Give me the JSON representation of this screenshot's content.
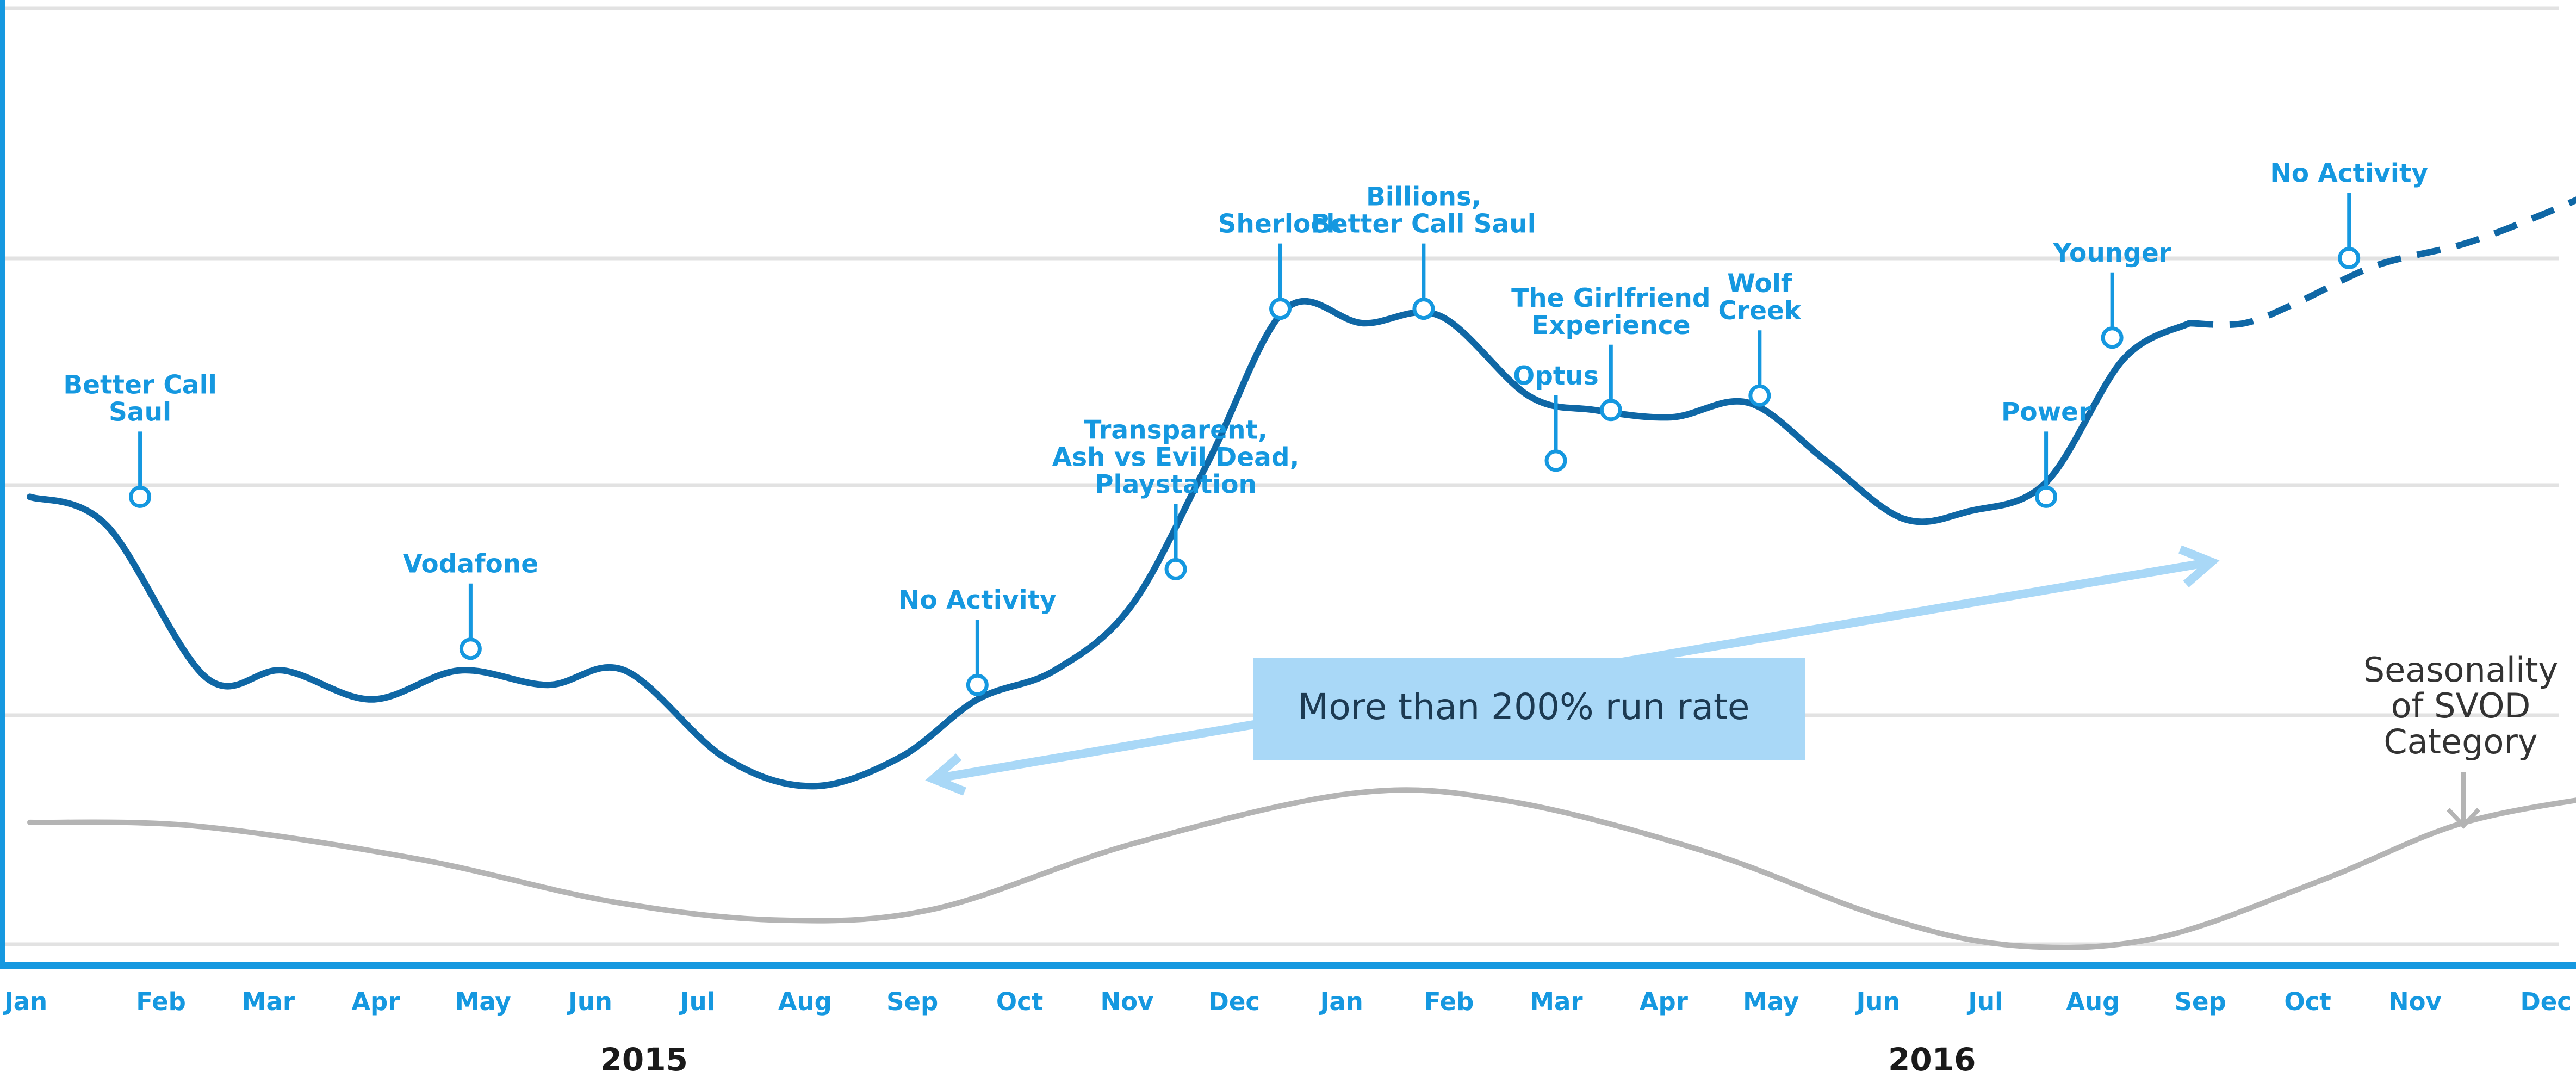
{
  "chart_data": {
    "type": "line",
    "title": "",
    "xlabel": "",
    "ylabel": "",
    "x": [
      "Jan",
      "Feb",
      "Mar",
      "Apr",
      "May",
      "Jun",
      "Jul",
      "Aug",
      "Sep",
      "Oct",
      "Nov",
      "Dec",
      "Jan",
      "Feb",
      "Mar",
      "Apr",
      "May",
      "Jun",
      "Jul",
      "Aug",
      "Sep",
      "Oct",
      "Nov",
      "Dec"
    ],
    "years": [
      {
        "label": "2015",
        "month_start": 0,
        "month_end": 11
      },
      {
        "label": "2016",
        "month_start": 12,
        "month_end": 23
      }
    ],
    "grid": true,
    "ylim": [
      0,
      100
    ],
    "series": [
      {
        "key": "activity",
        "style": "solid",
        "color": "#0f67a5",
        "points": [
          [
            0.0,
            62
          ],
          [
            0.7,
            58
          ],
          [
            1.6,
            37
          ],
          [
            2.3,
            38
          ],
          [
            3.1,
            34
          ],
          [
            3.9,
            38
          ],
          [
            4.7,
            36
          ],
          [
            5.4,
            38
          ],
          [
            6.3,
            26
          ],
          [
            7.1,
            22
          ],
          [
            7.9,
            26
          ],
          [
            8.6,
            34
          ],
          [
            9.3,
            38
          ],
          [
            10.0,
            47
          ],
          [
            10.7,
            67
          ],
          [
            11.4,
            88
          ],
          [
            12.1,
            86
          ],
          [
            12.8,
            87
          ],
          [
            13.6,
            76
          ],
          [
            14.2,
            74
          ],
          [
            14.9,
            73
          ],
          [
            15.6,
            75
          ],
          [
            16.3,
            67
          ],
          [
            17.0,
            59
          ],
          [
            17.6,
            60
          ],
          [
            18.3,
            64
          ],
          [
            19.0,
            81
          ],
          [
            19.6,
            86
          ]
        ]
      },
      {
        "key": "projection",
        "style": "dashed",
        "color": "#0f67a5",
        "points": [
          [
            19.6,
            86
          ],
          [
            20.1,
            86
          ],
          [
            20.6,
            89
          ],
          [
            21.3,
            94
          ],
          [
            22.1,
            97
          ],
          [
            22.8,
            101
          ],
          [
            23.4,
            105
          ]
        ]
      },
      {
        "key": "seasonality",
        "name": "Seasonality of SVOD Category",
        "style": "solid",
        "color": "#b4b4b4",
        "points": [
          [
            0.0,
            17
          ],
          [
            1.5,
            16.5
          ],
          [
            3.5,
            12
          ],
          [
            5.3,
            6
          ],
          [
            6.8,
            3.5
          ],
          [
            8.2,
            5
          ],
          [
            10.0,
            14
          ],
          [
            12.0,
            21
          ],
          [
            13.4,
            20
          ],
          [
            15.2,
            13
          ],
          [
            16.8,
            4
          ],
          [
            18.0,
            0
          ],
          [
            19.3,
            1
          ],
          [
            20.8,
            9
          ],
          [
            22.1,
            17
          ],
          [
            23.5,
            21
          ]
        ]
      }
    ],
    "annotations": [
      {
        "label": "Better Call Saul",
        "lines": [
          "Better Call",
          "Saul"
        ],
        "x": 1.0,
        "y": 62
      },
      {
        "label": "Vodafone",
        "lines": [
          "Vodafone"
        ],
        "x": 4.0,
        "y": 41
      },
      {
        "label": "No Activity",
        "lines": [
          "No Activity"
        ],
        "x": 8.6,
        "y": 36
      },
      {
        "label": "Transparent, Ash vs Evil Dead, Playstation",
        "lines": [
          "Transparent,",
          "Ash vs Evil Dead,",
          "Playstation"
        ],
        "x": 10.4,
        "y": 52
      },
      {
        "label": "Sherlock",
        "lines": [
          "Sherlock"
        ],
        "x": 11.35,
        "y": 88
      },
      {
        "label": "Billions, Better Call Saul",
        "lines": [
          "Billions,",
          "Better Call Saul"
        ],
        "x": 12.65,
        "y": 88
      },
      {
        "label": "Optus",
        "lines": [
          "Optus"
        ],
        "x": 13.85,
        "y": 67
      },
      {
        "label": "The Girlfriend Experience",
        "lines": [
          "The Girlfriend",
          "Experience"
        ],
        "x": 14.35,
        "y": 74
      },
      {
        "label": "Wolf Creek",
        "lines": [
          "Wolf",
          "Creek"
        ],
        "x": 15.7,
        "y": 76
      },
      {
        "label": "Power",
        "lines": [
          "Power"
        ],
        "x": 18.3,
        "y": 62
      },
      {
        "label": "Younger",
        "lines": [
          "Younger"
        ],
        "x": 18.9,
        "y": 84
      },
      {
        "label": "No Activity",
        "lines": [
          "No Activity"
        ],
        "x": 21.05,
        "y": 95
      }
    ],
    "run_rate": {
      "label": "More than 200% run rate",
      "from_x": 8.2,
      "from_y": 23,
      "to_x": 19.8,
      "to_y": 53
    },
    "seasonality_label": [
      "Seasonality",
      "of SVOD",
      "Category"
    ],
    "colors": {
      "activity": "#0f67a5",
      "annotation": "#1598e0",
      "seasonality": "#b4b4b4",
      "run_rate_arrow": "#a9d8f7",
      "run_rate_box": "#a9d8f7",
      "gridline": "#e2e2e2",
      "axis": "#1598e0",
      "text_dark": "#1a1a1a"
    }
  }
}
